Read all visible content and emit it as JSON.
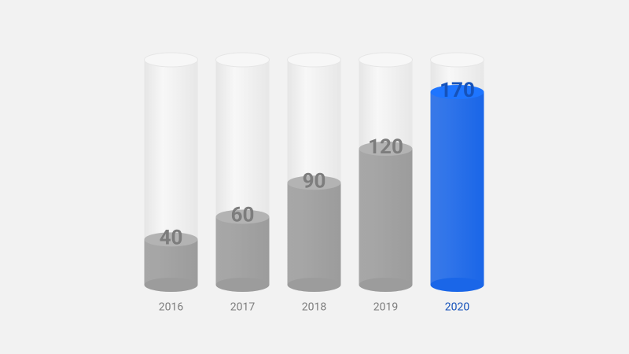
{
  "chart_data": {
    "type": "bar",
    "categories": [
      "2016",
      "2017",
      "2018",
      "2019",
      "2020"
    ],
    "values": [
      40,
      60,
      90,
      120,
      170
    ],
    "colors": [
      "#9c9c9c",
      "#9c9c9c",
      "#9c9c9c",
      "#9c9c9c",
      "#1a66e8"
    ]
  }
}
